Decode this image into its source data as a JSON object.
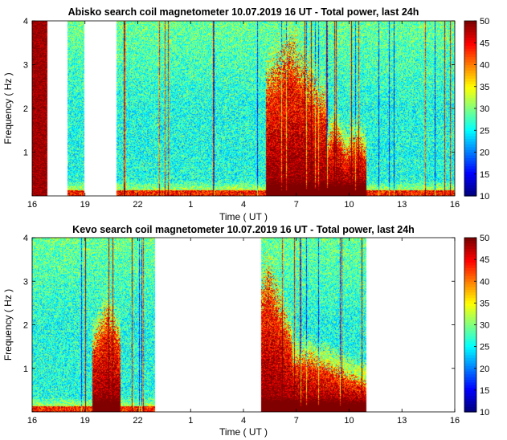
{
  "chart_data": [
    {
      "type": "heatmap",
      "title": "Abisko search coil magnetometer 10.07.2019 16 UT - Total power, last 24h",
      "xlabel": "Time ( UT )",
      "ylabel": "Frequency ( Hz )",
      "x_tick_labels": [
        "16",
        "19",
        "22",
        "1",
        "4",
        "7",
        "10",
        "13",
        "16"
      ],
      "y_tick_labels": [
        "1",
        "2",
        "3",
        "4"
      ],
      "y_ticks": [
        1,
        2,
        3,
        4
      ],
      "ylim": [
        0,
        4
      ],
      "xlim_hours_since_start": [
        0,
        24
      ],
      "colorbar": {
        "min": 10,
        "max": 50,
        "ticks": [
          10,
          15,
          20,
          25,
          30,
          35,
          40,
          45,
          50
        ],
        "colormap": "jet"
      },
      "data_gaps": [
        [
          0.85,
          2.0
        ],
        [
          2.95,
          4.8
        ]
      ],
      "saturated_segments": [
        [
          0,
          0.85
        ]
      ],
      "strong_activity": [
        {
          "from": 13.3,
          "to": 16.7,
          "peak_hour": 14.6,
          "max_frequency": 3.3
        },
        {
          "from": 16.7,
          "to": 17.8,
          "peak_hour": 17.2,
          "max_frequency": 1.6
        },
        {
          "from": 17.8,
          "to": 19.0,
          "peak_hour": 18.4,
          "max_frequency": 1.4
        }
      ],
      "background_level": 28
    },
    {
      "type": "heatmap",
      "title": "Kevo search coil magnetometer 10.07.2019 16 UT - Total power, last 24h",
      "xlabel": "Time ( UT )",
      "ylabel": "Frequency ( Hz )",
      "x_tick_labels": [
        "16",
        "19",
        "22",
        "1",
        "4",
        "7",
        "10",
        "13",
        "16"
      ],
      "y_tick_labels": [
        "1",
        "2",
        "3",
        "4"
      ],
      "y_ticks": [
        1,
        2,
        3,
        4
      ],
      "ylim": [
        0,
        4
      ],
      "xlim_hours_since_start": [
        0,
        24
      ],
      "colorbar": {
        "min": 10,
        "max": 50,
        "ticks": [
          10,
          15,
          20,
          25,
          30,
          35,
          40,
          45,
          50
        ],
        "colormap": "jet"
      },
      "data_gaps": [
        [
          7.0,
          13.0
        ],
        [
          19.0,
          24.0
        ]
      ],
      "saturated_segments": [],
      "strong_activity": [
        {
          "from": 3.4,
          "to": 5.0,
          "peak_hour": 4.3,
          "max_frequency": 2.3
        },
        {
          "from": 13.0,
          "to": 14.8,
          "peak_hour": 13.4,
          "max_frequency": 3.1
        },
        {
          "from": 14.8,
          "to": 19.0,
          "peak_hour": 15.5,
          "max_frequency": 1.3
        }
      ],
      "background_level": 28
    }
  ]
}
